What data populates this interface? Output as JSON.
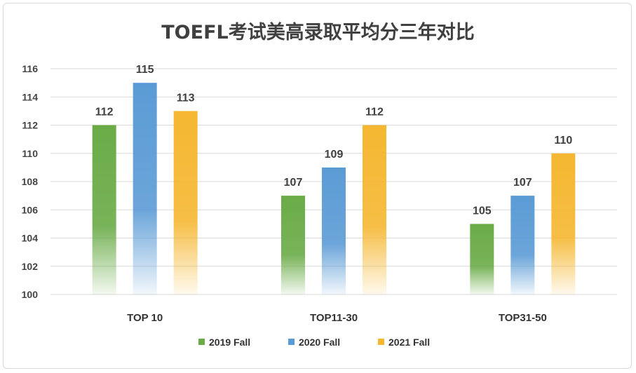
{
  "chart_data": {
    "type": "bar",
    "title": "TOEFL考试美高录取平均分三年对比",
    "categories": [
      "TOP 10",
      "TOP11-30",
      "TOP31-50"
    ],
    "series": [
      {
        "name": "2019 Fall",
        "color": "#6aab47",
        "values": [
          112,
          107,
          105
        ]
      },
      {
        "name": "2020 Fall",
        "color": "#5b9bd5",
        "values": [
          115,
          109,
          107
        ]
      },
      {
        "name": "2021 Fall",
        "color": "#f5b731",
        "values": [
          113,
          112,
          110
        ]
      }
    ],
    "ylim": [
      100,
      116
    ],
    "yticks": [
      "100",
      "102",
      "104",
      "106",
      "108",
      "110",
      "112",
      "114",
      "116"
    ],
    "grid": true,
    "legend_position": "bottom"
  }
}
